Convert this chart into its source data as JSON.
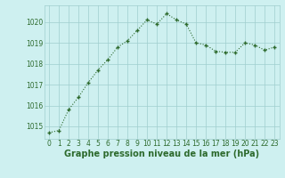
{
  "x": [
    0,
    1,
    2,
    3,
    4,
    5,
    6,
    7,
    8,
    9,
    10,
    11,
    12,
    13,
    14,
    15,
    16,
    17,
    18,
    19,
    20,
    21,
    22,
    23
  ],
  "y": [
    1014.7,
    1014.8,
    1015.8,
    1016.4,
    1017.1,
    1017.7,
    1018.2,
    1018.8,
    1019.1,
    1019.6,
    1020.1,
    1019.9,
    1020.4,
    1020.1,
    1019.9,
    1019.0,
    1018.9,
    1018.6,
    1018.55,
    1018.55,
    1019.0,
    1018.9,
    1018.65,
    1018.8
  ],
  "line_color": "#2d6a2d",
  "marker_color": "#2d6a2d",
  "bg_color": "#cef0f0",
  "grid_color": "#9fcece",
  "xlabel": "Graphe pression niveau de la mer (hPa)",
  "xlabel_color": "#2d6a2d",
  "xlim": [
    -0.5,
    23.5
  ],
  "ylim": [
    1014.4,
    1020.8
  ],
  "yticks": [
    1015,
    1016,
    1017,
    1018,
    1019,
    1020
  ],
  "xticks": [
    0,
    1,
    2,
    3,
    4,
    5,
    6,
    7,
    8,
    9,
    10,
    11,
    12,
    13,
    14,
    15,
    16,
    17,
    18,
    19,
    20,
    21,
    22,
    23
  ],
  "tick_label_color": "#2d6a2d",
  "tick_label_fontsize": 5.5,
  "xlabel_fontsize": 7.0,
  "line_width": 0.8,
  "marker_size": 3.0
}
